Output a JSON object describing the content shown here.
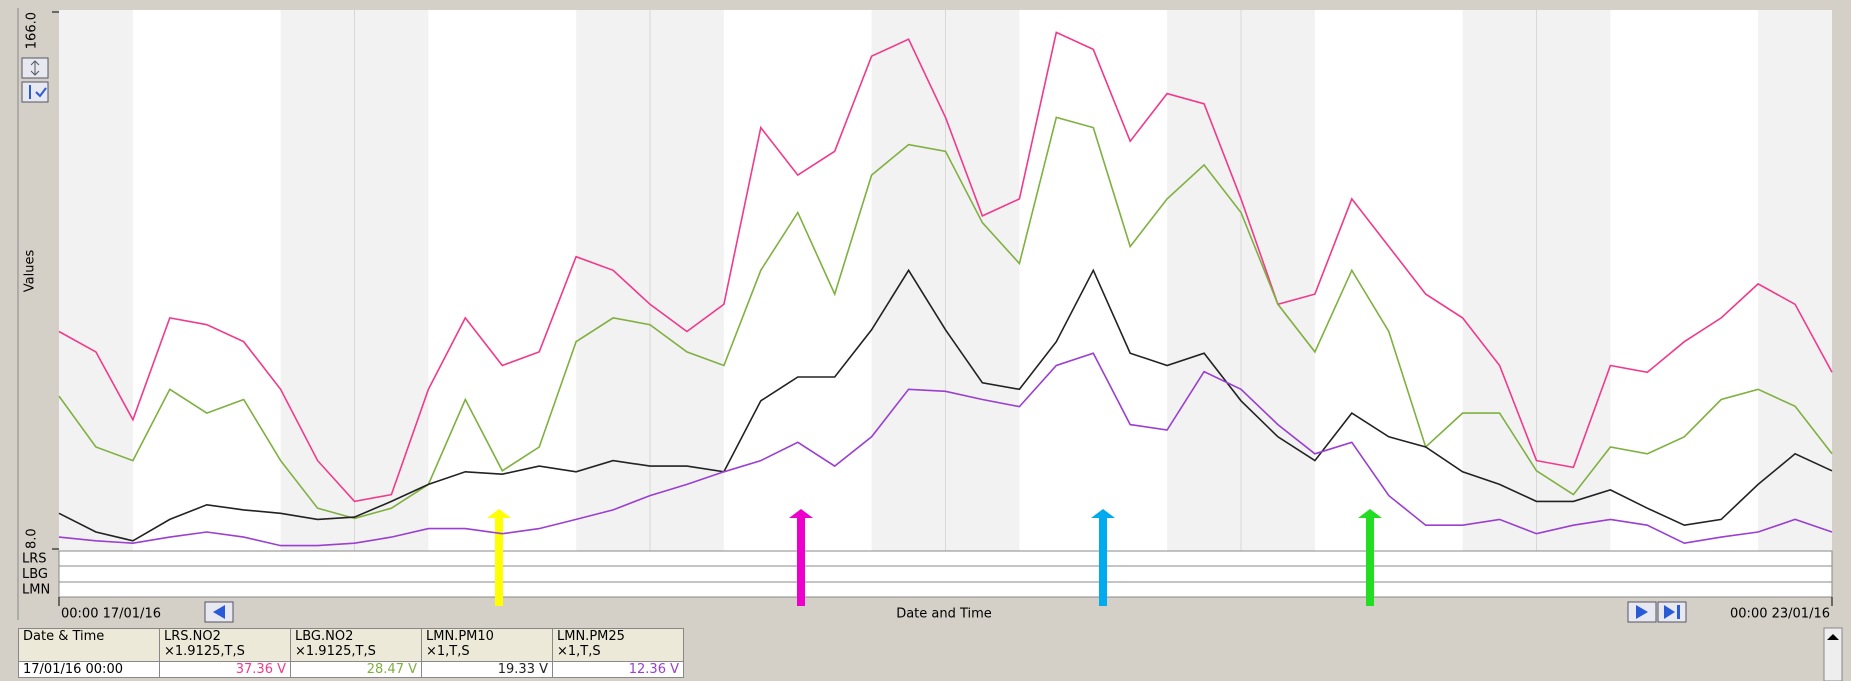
{
  "chart_data": {
    "type": "line",
    "y_label": "Values",
    "x_label": "Date and Time",
    "ylim": [
      8,
      166
    ],
    "yticks": [
      {
        "value": 166,
        "label": "166.0"
      },
      {
        "value": 8,
        "label": "8.0"
      }
    ],
    "xlim": [
      "00:00 17/01/16",
      "00:00 23/01/16"
    ],
    "lanes": [
      "LRS",
      "LBG",
      "LMN"
    ],
    "x": [
      "00:00 17/01/16",
      "03:00 17/01/16",
      "06:00 17/01/16",
      "09:00 17/01/16",
      "12:00 17/01/16",
      "15:00 17/01/16",
      "18:00 17/01/16",
      "21:00 17/01/16",
      "00:00 18/01/16",
      "03:00 18/01/16",
      "06:00 18/01/16",
      "09:00 18/01/16",
      "12:00 18/01/16",
      "15:00 18/01/16",
      "18:00 18/01/16",
      "21:00 18/01/16",
      "00:00 19/01/16",
      "03:00 19/01/16",
      "06:00 19/01/16",
      "09:00 19/01/16",
      "12:00 19/01/16",
      "15:00 19/01/16",
      "18:00 19/01/16",
      "21:00 19/01/16",
      "00:00 20/01/16",
      "03:00 20/01/16",
      "06:00 20/01/16",
      "09:00 20/01/16",
      "12:00 20/01/16",
      "15:00 20/01/16",
      "18:00 20/01/16",
      "21:00 20/01/16",
      "00:00 21/01/16",
      "03:00 21/01/16",
      "06:00 21/01/16",
      "09:00 21/01/16",
      "12:00 21/01/16",
      "15:00 21/01/16",
      "18:00 21/01/16",
      "21:00 21/01/16",
      "00:00 22/01/16",
      "03:00 22/01/16",
      "06:00 22/01/16",
      "09:00 22/01/16",
      "12:00 22/01/16",
      "15:00 22/01/16",
      "18:00 22/01/16",
      "21:00 22/01/16",
      "00:00 23/01/16"
    ],
    "series": [
      {
        "name": "LRS.NO2",
        "color": "#f03a8c",
        "values": [
          72,
          66,
          46,
          76,
          74,
          69,
          55,
          34,
          22,
          24,
          55,
          76,
          62,
          66,
          94,
          90,
          80,
          72,
          80,
          132,
          118,
          125,
          153,
          158,
          135,
          106,
          111,
          160,
          155,
          128,
          142,
          139,
          111,
          80,
          83,
          111,
          97,
          83,
          76,
          62,
          34,
          32,
          62,
          60,
          69,
          76,
          86,
          80,
          60
        ]
      },
      {
        "name": "LBG.NO2",
        "color": "#7fb040",
        "values": [
          53,
          38,
          34,
          55,
          48,
          52,
          34,
          20,
          17,
          20,
          27,
          52,
          31,
          38,
          69,
          76,
          74,
          66,
          62,
          90,
          107,
          83,
          118,
          127,
          125,
          104,
          92,
          135,
          132,
          97,
          111,
          121,
          107,
          80,
          66,
          90,
          72,
          38,
          48,
          48,
          31,
          24,
          38,
          36,
          41,
          52,
          55,
          50,
          36
        ]
      },
      {
        "name": "LMN.PM10",
        "color": "#222222",
        "values": [
          18.5,
          13,
          10.4,
          16.7,
          21,
          19.5,
          18.5,
          16.7,
          17.4,
          22,
          27,
          30.7,
          30,
          32.4,
          30.7,
          34,
          32.4,
          32.4,
          30.7,
          51.6,
          58.6,
          58.6,
          72.5,
          90,
          72.5,
          56.9,
          55,
          69,
          90,
          65.6,
          62,
          65.6,
          51.6,
          41,
          34,
          48,
          41,
          38,
          30.7,
          27,
          22,
          22,
          25.4,
          20,
          15,
          16.7,
          27,
          36,
          31
        ]
      },
      {
        "name": "LMN.PM25",
        "color": "#9a3fd0",
        "values": [
          11.5,
          10.4,
          9.7,
          11.5,
          13,
          11.5,
          9,
          9,
          9.7,
          11.5,
          14,
          14,
          12.5,
          14,
          16.7,
          19.5,
          23.7,
          27,
          30.7,
          34,
          39.4,
          32.4,
          41,
          55,
          54.4,
          52,
          49.9,
          62,
          65.6,
          44.6,
          43,
          60.2,
          55,
          44.6,
          36,
          39.4,
          23.7,
          15,
          15,
          16.7,
          12.5,
          15,
          16.7,
          15,
          9.7,
          11.5,
          13,
          16.7,
          13
        ]
      }
    ]
  },
  "table": {
    "first_header": "Date & Time",
    "header_notes": [
      "×1.9125,T,S",
      "×1.9125,T,S",
      "×1,T,S",
      "×1,T,S"
    ],
    "rows": [
      [
        "17/01/16 00:00",
        "37.36 V",
        "28.47 V",
        "19.33 V",
        "12.36 V"
      ]
    ]
  }
}
